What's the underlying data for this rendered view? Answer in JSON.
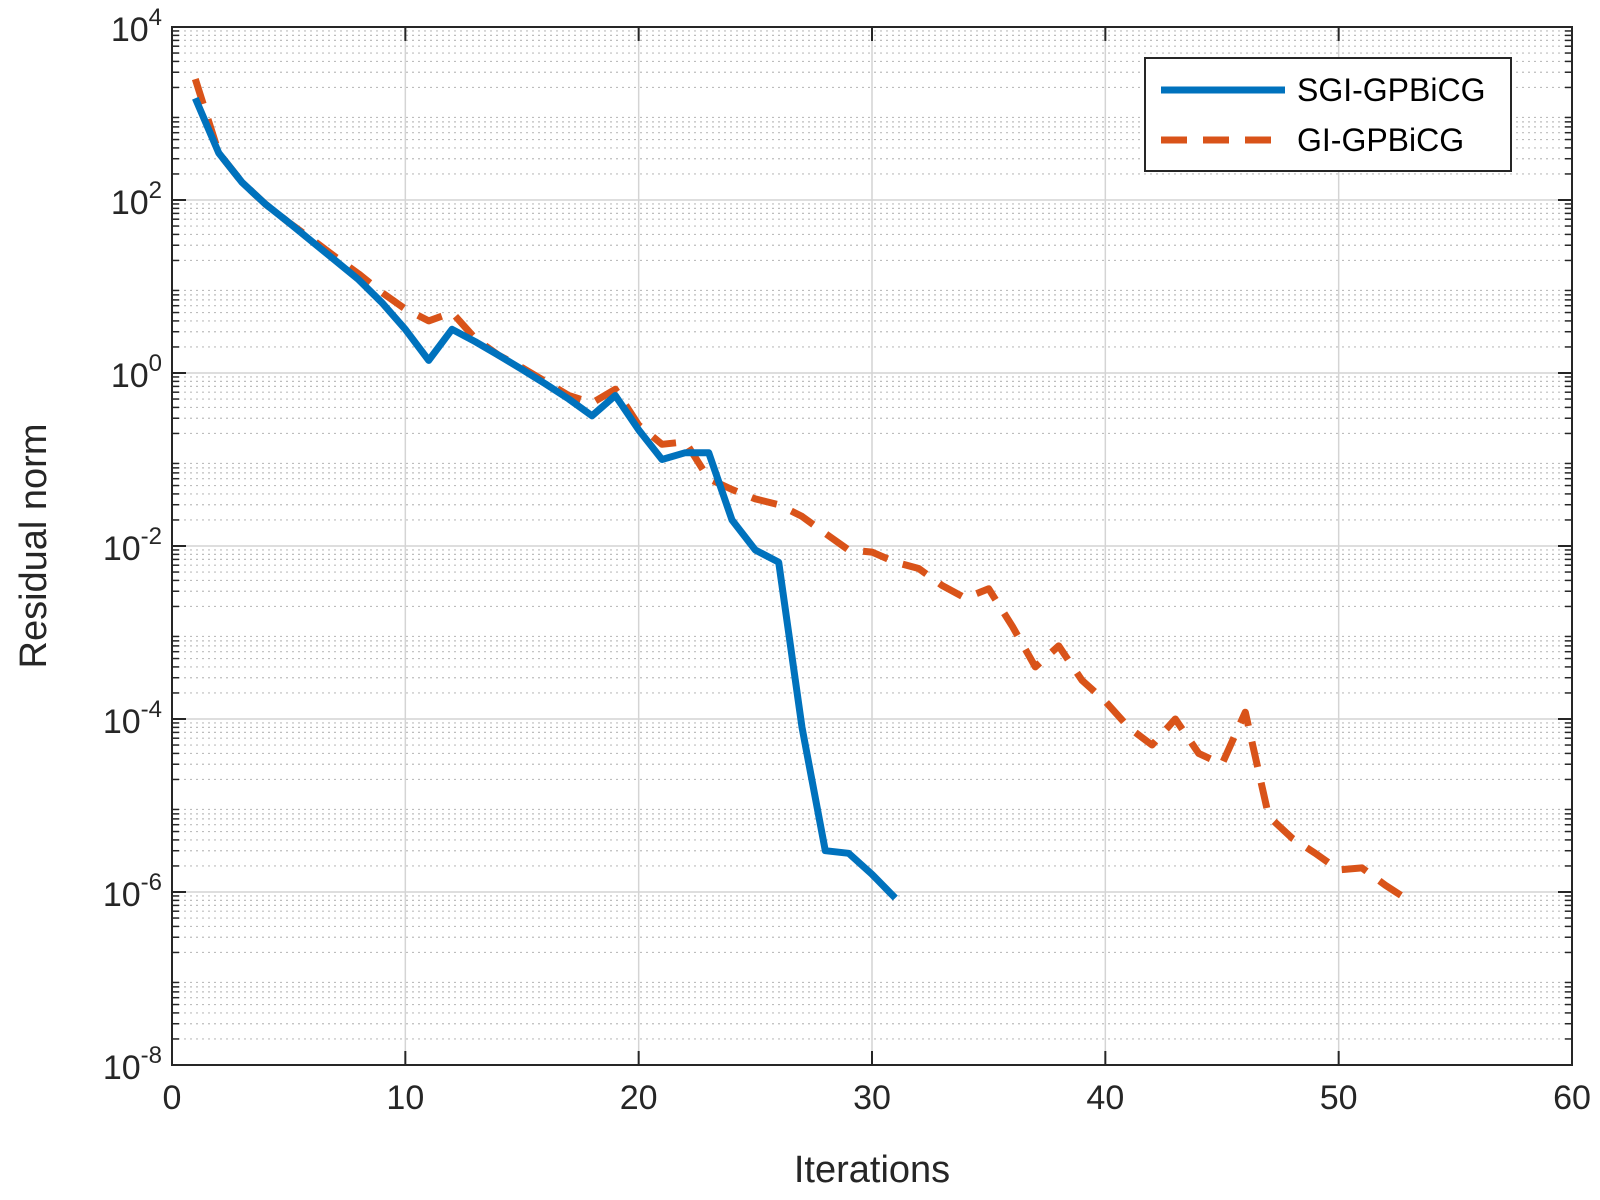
{
  "chart_data": {
    "type": "line",
    "title": "",
    "xlabel": "Iterations",
    "ylabel": "Residual norm",
    "xlim": [
      0,
      60
    ],
    "ylim": [
      1e-08,
      10000
    ],
    "yscale": "log",
    "xticks": [
      0,
      10,
      20,
      30,
      40,
      50,
      60
    ],
    "xtick_labels": [
      "0",
      "10",
      "20",
      "30",
      "40",
      "50",
      "60"
    ],
    "yticks": [
      {
        "value": 10000,
        "base": "10",
        "exp": "4"
      },
      {
        "value": 100,
        "base": "10",
        "exp": "2"
      },
      {
        "value": 1,
        "base": "10",
        "exp": "0"
      },
      {
        "value": 0.01,
        "base": "10",
        "exp": "-2"
      },
      {
        "value": 0.0001,
        "base": "10",
        "exp": "-4"
      },
      {
        "value": 1e-06,
        "base": "10",
        "exp": "-6"
      },
      {
        "value": 1e-08,
        "base": "10",
        "exp": "-8"
      }
    ],
    "grid": true,
    "minor_grid": true,
    "legend_position": "top-right",
    "series": [
      {
        "name": "SGI-GPBiCG",
        "color": "#0072BD",
        "style": "solid",
        "x": [
          1,
          2,
          3,
          4,
          5,
          6,
          7,
          8,
          9,
          10,
          11,
          12,
          13,
          14,
          15,
          16,
          17,
          18,
          19,
          20,
          21,
          22,
          23,
          24,
          25,
          26,
          27,
          28,
          29,
          30,
          31
        ],
        "y": [
          1500,
          350,
          160,
          90,
          55,
          33,
          20,
          12,
          6.5,
          3.2,
          1.4,
          3.2,
          2.3,
          1.6,
          1.1,
          0.75,
          0.5,
          0.32,
          0.55,
          0.22,
          0.1,
          0.12,
          0.12,
          0.02,
          0.009,
          0.0065,
          8e-05,
          3e-06,
          2.8e-06,
          1.6e-06,
          8.5e-07
        ]
      },
      {
        "name": "GI-GPBiCG",
        "color": "#D95319",
        "style": "dashed",
        "x": [
          1,
          2,
          3,
          4,
          5,
          6,
          7,
          8,
          9,
          10,
          11,
          12,
          13,
          14,
          15,
          16,
          17,
          18,
          19,
          20,
          21,
          22,
          23,
          24,
          25,
          26,
          27,
          28,
          29,
          30,
          31,
          32,
          33,
          34,
          35,
          36,
          37,
          38,
          39,
          40,
          41,
          42,
          43,
          44,
          45,
          46,
          47,
          48,
          49,
          50,
          51,
          52,
          53
        ],
        "y": [
          2500,
          350,
          160,
          90,
          55,
          35,
          22,
          14,
          8.5,
          5.5,
          4,
          5,
          2.5,
          1.6,
          1.15,
          0.8,
          0.55,
          0.45,
          0.65,
          0.25,
          0.15,
          0.16,
          0.06,
          0.045,
          0.035,
          0.03,
          0.022,
          0.014,
          0.009,
          0.0085,
          0.0065,
          0.0055,
          0.0035,
          0.0025,
          0.0032,
          0.0012,
          0.0004,
          0.0007,
          0.00028,
          0.00016,
          8e-05,
          5e-05,
          0.0001,
          4e-05,
          3e-05,
          0.00012,
          7.5e-06,
          4.2e-06,
          2.8e-06,
          1.8e-06,
          1.9e-06,
          1.2e-06,
          8e-07
        ]
      }
    ]
  }
}
